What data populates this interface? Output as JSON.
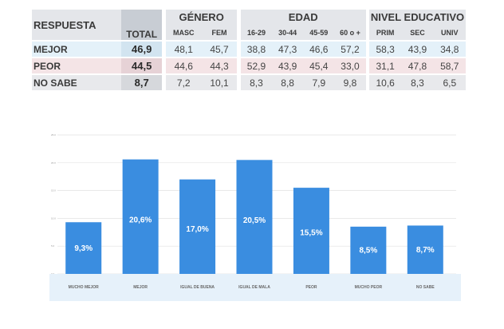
{
  "table": {
    "header": {
      "respuesta": "RESPUESTA",
      "total": "TOTAL",
      "genero": "GÉNERO",
      "edad": "EDAD",
      "nivel": "NIVEL EDUCATIVO",
      "sub": [
        "MASC",
        "FEM",
        "16-29",
        "30-44",
        "45-59",
        "60 o +",
        "PRIM",
        "SEC",
        "UNIV"
      ]
    },
    "rows": [
      {
        "label": "MEJOR",
        "total": "46,9",
        "values": [
          "48,1",
          "45,7",
          "38,8",
          "47,3",
          "46,6",
          "57,2",
          "58,3",
          "43,9",
          "34,8"
        ]
      },
      {
        "label": "PEOR",
        "total": "44,5",
        "values": [
          "44,6",
          "44,3",
          "52,9",
          "43,9",
          "45,4",
          "33,0",
          "31,1",
          "47,8",
          "58,7"
        ]
      },
      {
        "label": "NO SABE",
        "total": "8,7",
        "values": [
          "7,2",
          "10,1",
          "8,3",
          "8,8",
          "7,9",
          "9,8",
          "10,6",
          "8,3",
          "6,5"
        ]
      }
    ]
  },
  "chart_data": {
    "type": "bar",
    "categories": [
      "MUCHO MEJOR",
      "MEJOR",
      "IGUAL DE BUENA",
      "IGUAL DE MALA",
      "PEOR",
      "MUCHO PEOR",
      "NO SABE"
    ],
    "values": [
      9.3,
      20.6,
      17.0,
      20.5,
      15.5,
      8.5,
      8.7
    ],
    "data_labels": [
      "9,3%",
      "20,6%",
      "17,0%",
      "20,5%",
      "15,5%",
      "8,5%",
      "8,7%"
    ],
    "ylim": [
      0,
      25
    ],
    "yticks": [
      "0.0",
      "5.0",
      "10.0",
      "15.0",
      "20.0",
      "25.0"
    ],
    "grid": true,
    "colors": {
      "bar": "#3a8de0",
      "axis_band": "#e6f1fa",
      "grid": "#e2e2e2"
    }
  }
}
